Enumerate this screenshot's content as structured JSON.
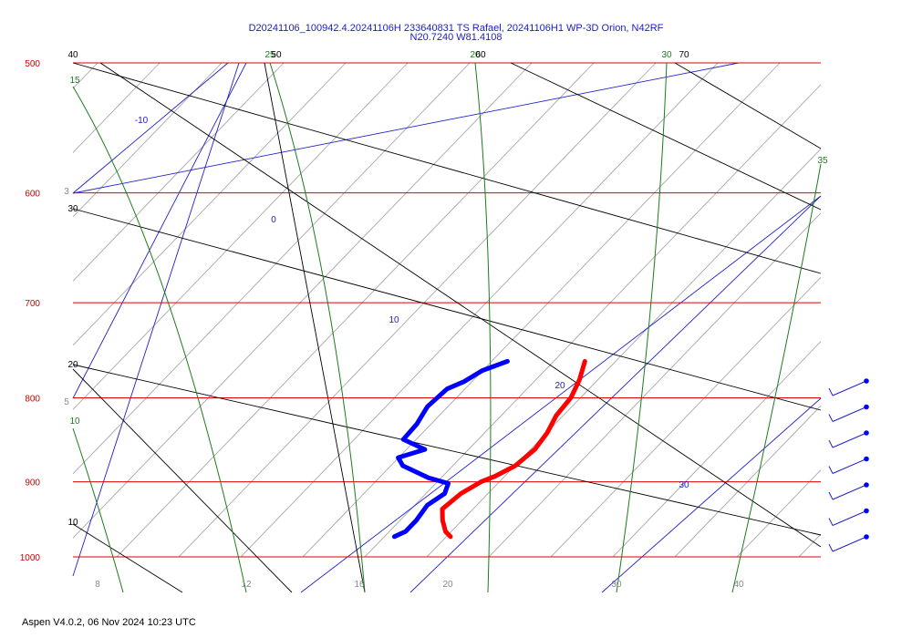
{
  "chart_data": {
    "type": "skew-t",
    "title_line1": "D20241106_100942.4.20241106H 233640831 TS Rafael, 20241106H1 WP-3D Orion, N42RF",
    "title_line2": "N20.7240 W81.4108",
    "pressure_levels": [
      "500",
      "600",
      "700",
      "800",
      "900",
      "1000"
    ],
    "temperature_ticks": [
      "8",
      "12",
      "16",
      "20",
      "30",
      "40"
    ],
    "isotherm_labels": [
      "-10",
      "0",
      "10",
      "20",
      "30"
    ],
    "dry_adiabat_labels": [
      "40",
      "30",
      "20",
      "10"
    ],
    "moist_adiabat_labels": [
      "15",
      "10",
      "25",
      "20",
      "30",
      "35"
    ],
    "mixing_ratio_labels": [
      "3",
      "5"
    ],
    "extra_top_labels": [
      "50",
      "60",
      "70"
    ],
    "series": [
      {
        "name": "temperature",
        "color": "#ff0000",
        "points": [
          [
            760,
            18.5
          ],
          [
            780,
            19.5
          ],
          [
            800,
            20.2
          ],
          [
            820,
            20.4
          ],
          [
            840,
            21.0
          ],
          [
            860,
            21.3
          ],
          [
            880,
            21.0
          ],
          [
            893,
            20.2
          ],
          [
            900,
            19.5
          ],
          [
            915,
            18.8
          ],
          [
            935,
            18.5
          ],
          [
            950,
            19.4
          ],
          [
            965,
            20.5
          ],
          [
            972,
            21.3
          ]
        ]
      },
      {
        "name": "dewpoint",
        "color": "#0000ff",
        "points": [
          [
            760,
            12.3
          ],
          [
            770,
            11.0
          ],
          [
            782,
            10.4
          ],
          [
            790,
            9.6
          ],
          [
            810,
            9.4
          ],
          [
            830,
            9.9
          ],
          [
            848,
            10.0
          ],
          [
            860,
            12.5
          ],
          [
            870,
            11.0
          ],
          [
            880,
            12.0
          ],
          [
            895,
            15.0
          ],
          [
            902,
            17.0
          ],
          [
            915,
            17.5
          ],
          [
            930,
            17.0
          ],
          [
            950,
            17.3
          ],
          [
            965,
            17.3
          ],
          [
            972,
            16.8
          ]
        ]
      }
    ],
    "wind_barbs_count": 7
  },
  "footer": {
    "text": "Aspen V4.0.2, 06 Nov  2024  10:23 UTC"
  }
}
